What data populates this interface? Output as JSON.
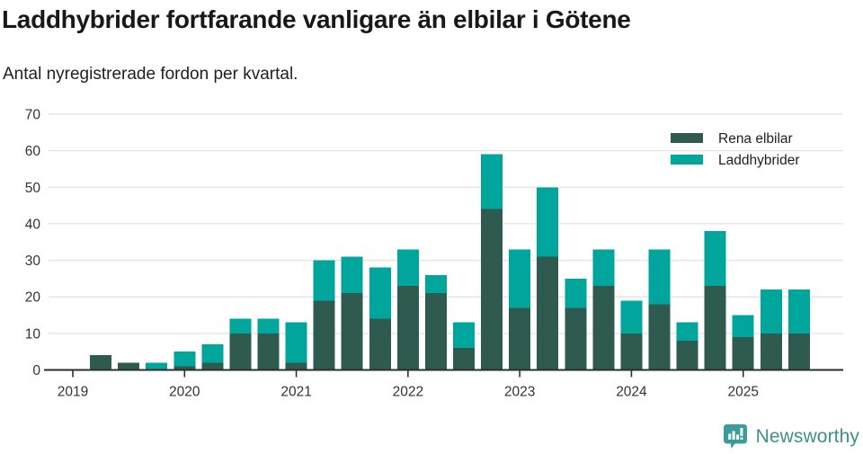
{
  "header": {
    "title": "Laddhybrider fortfarande vanligare än elbilar i Götene",
    "subtitle": "Antal nyregistrerade fordon per kvartal."
  },
  "chart_data": {
    "type": "bar",
    "stacked": true,
    "title": "Laddhybrider fortfarande vanligare än elbilar i Götene",
    "subtitle": "Antal nyregistrerade fordon per kvartal.",
    "categories": [
      "2019Q1",
      "2019Q2",
      "2019Q3",
      "2019Q4",
      "2020Q1",
      "2020Q2",
      "2020Q3",
      "2020Q4",
      "2021Q1",
      "2021Q2",
      "2021Q3",
      "2021Q4",
      "2022Q1",
      "2022Q2",
      "2022Q3",
      "2022Q4",
      "2023Q1",
      "2023Q2",
      "2023Q3",
      "2023Q4",
      "2024Q1",
      "2024Q2",
      "2024Q3",
      "2024Q4",
      "2025Q1",
      "2025Q2",
      "2025Q3"
    ],
    "series": [
      {
        "name": "Rena elbilar",
        "color": "#2f5a50",
        "values": [
          0,
          4,
          2,
          0,
          1,
          2,
          10,
          10,
          2,
          19,
          21,
          14,
          23,
          21,
          6,
          44,
          17,
          31,
          17,
          23,
          10,
          18,
          8,
          23,
          9,
          10,
          10
        ]
      },
      {
        "name": "Laddhybrider",
        "color": "#00a69c",
        "values": [
          0,
          0,
          0,
          2,
          4,
          5,
          4,
          4,
          11,
          11,
          10,
          14,
          10,
          5,
          7,
          15,
          16,
          19,
          8,
          10,
          9,
          15,
          5,
          15,
          6,
          12,
          12
        ]
      }
    ],
    "totals": [
      0,
      4,
      2,
      2,
      5,
      7,
      14,
      14,
      13,
      30,
      31,
      28,
      33,
      26,
      13,
      59,
      33,
      50,
      25,
      33,
      19,
      33,
      13,
      38,
      15,
      22,
      22
    ],
    "xticks": [
      "2019",
      "2020",
      "2021",
      "2022",
      "2023",
      "2024",
      "2025"
    ],
    "yticks": [
      0,
      10,
      20,
      30,
      40,
      50,
      60,
      70
    ],
    "ylim": [
      0,
      70
    ],
    "xlabel": "",
    "ylabel": "",
    "grid": true,
    "legend_position": "top-right"
  },
  "colors": {
    "rena_elbilar": "#2f5a50",
    "laddhybrider": "#00a69c",
    "grid": "#e3e3e3",
    "axis": "#2e2e2e",
    "tick_text": "#333333",
    "brand": "#3e908e",
    "logo": "#3a9d9b"
  },
  "footer": {
    "brand": "Newsworthy"
  }
}
